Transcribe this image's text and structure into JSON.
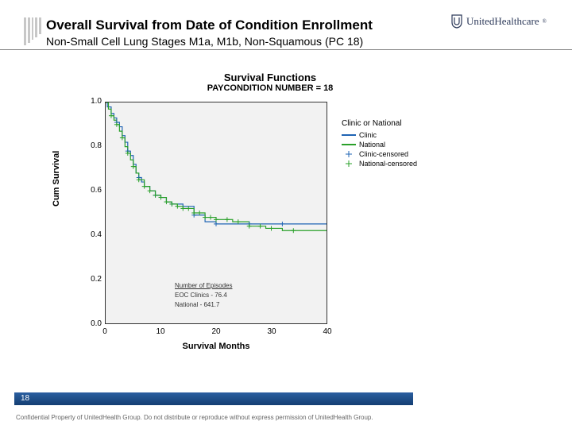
{
  "branding": {
    "name": "UnitedHealthcare"
  },
  "header": {
    "title": "Overall Survival from Date of Condition Enrollment",
    "subtitle": "Non-Small Cell Lung Stages M1a, M1b, Non-Squamous (PC 18)"
  },
  "chart": {
    "title": "Survival Functions",
    "subtitle": "PAYCONDITION NUMBER = 18",
    "y_label": "Cum Survival",
    "x_label": "Survival Months",
    "background_color": "#f2f2f2",
    "border_color": "#333333",
    "ylim": [
      0.0,
      1.0
    ],
    "xlim": [
      0,
      40
    ],
    "yticks": [
      0.0,
      0.2,
      0.4,
      0.6,
      0.8,
      1.0
    ],
    "xticks": [
      0,
      10,
      20,
      30,
      40
    ],
    "series": {
      "clinic": {
        "color": "#1f64b4",
        "line_width": 1.2,
        "points": [
          [
            0,
            1.0
          ],
          [
            0.3,
            0.98
          ],
          [
            1,
            0.95
          ],
          [
            1.5,
            0.93
          ],
          [
            2,
            0.91
          ],
          [
            2.5,
            0.89
          ],
          [
            3,
            0.85
          ],
          [
            3.5,
            0.82
          ],
          [
            4,
            0.78
          ],
          [
            4.5,
            0.76
          ],
          [
            5,
            0.72
          ],
          [
            5.5,
            0.68
          ],
          [
            6,
            0.66
          ],
          [
            6.5,
            0.64
          ],
          [
            7,
            0.62
          ],
          [
            8,
            0.6
          ],
          [
            9,
            0.58
          ],
          [
            10,
            0.57
          ],
          [
            11,
            0.55
          ],
          [
            12,
            0.54
          ],
          [
            14,
            0.53
          ],
          [
            16,
            0.49
          ],
          [
            18,
            0.46
          ],
          [
            20,
            0.45
          ],
          [
            24,
            0.45
          ],
          [
            28,
            0.45
          ],
          [
            32,
            0.45
          ],
          [
            36,
            0.45
          ],
          [
            40,
            0.45
          ]
        ],
        "censored_x": [
          2,
          4,
          6,
          9,
          12,
          16,
          20,
          26,
          32
        ]
      },
      "national": {
        "color": "#2aa02a",
        "line_width": 1.2,
        "points": [
          [
            0,
            1.0
          ],
          [
            0.5,
            0.97
          ],
          [
            1,
            0.94
          ],
          [
            1.5,
            0.92
          ],
          [
            2,
            0.9
          ],
          [
            2.5,
            0.87
          ],
          [
            3,
            0.84
          ],
          [
            3.5,
            0.8
          ],
          [
            4,
            0.77
          ],
          [
            4.5,
            0.74
          ],
          [
            5,
            0.71
          ],
          [
            5.5,
            0.68
          ],
          [
            6,
            0.65
          ],
          [
            7,
            0.62
          ],
          [
            8,
            0.6
          ],
          [
            9,
            0.58
          ],
          [
            10,
            0.57
          ],
          [
            11,
            0.55
          ],
          [
            12,
            0.54
          ],
          [
            13,
            0.53
          ],
          [
            14,
            0.52
          ],
          [
            16,
            0.5
          ],
          [
            18,
            0.48
          ],
          [
            20,
            0.47
          ],
          [
            23,
            0.46
          ],
          [
            26,
            0.44
          ],
          [
            29,
            0.43
          ],
          [
            32,
            0.42
          ],
          [
            36,
            0.42
          ],
          [
            40,
            0.42
          ]
        ],
        "censored_x": [
          1,
          2,
          3,
          4,
          5,
          6,
          7,
          8,
          9,
          10,
          11,
          12,
          13,
          14,
          15,
          16,
          17,
          18,
          19,
          20,
          22,
          24,
          26,
          28,
          30,
          34
        ]
      }
    },
    "legend": {
      "title": "Clinic or National",
      "items": [
        {
          "label": "Clinic",
          "kind": "line",
          "color": "#1f64b4"
        },
        {
          "label": "National",
          "kind": "line",
          "color": "#2aa02a"
        },
        {
          "label": "Clinic-censored",
          "kind": "mark",
          "color": "#1f64b4"
        },
        {
          "label": "National-censored",
          "kind": "mark",
          "color": "#2aa02a"
        }
      ]
    },
    "inset": {
      "header": "Number of Episodes",
      "line1": "EOC Clinics - 76.4",
      "line2": "National - 641.7"
    }
  },
  "footer": {
    "page": "18",
    "disclaimer": "Confidential Property of UnitedHealth Group. Do not distribute or reproduce without express permission of UnitedHealth Group."
  }
}
